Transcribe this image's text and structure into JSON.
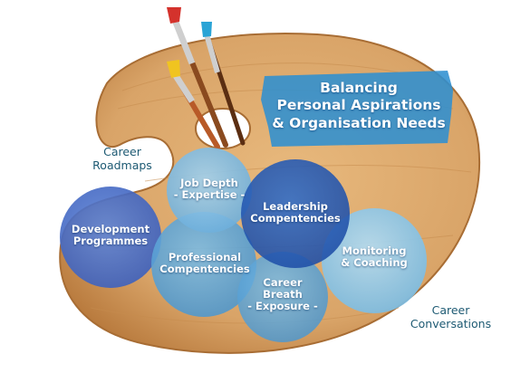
{
  "title": {
    "line1": "Balancing",
    "line2": "Personal Aspirations",
    "line3": "& Organisation Needs"
  },
  "outer_labels": {
    "roadmaps": {
      "line1": "Career",
      "line2": "Roadmaps"
    },
    "conversations": {
      "line1": "Career",
      "line2": "Conversations"
    }
  },
  "circles": {
    "development": {
      "line1": "Development",
      "line2": "Programmes"
    },
    "job_depth": {
      "line1": "Job Depth",
      "line2": "- Expertise -"
    },
    "leadership": {
      "line1": "Leadership",
      "line2": "Compentencies"
    },
    "professional": {
      "line1": "Professional",
      "line2": "Compentencies"
    },
    "monitoring": {
      "line1": "Monitoring",
      "line2": "& Coaching"
    },
    "career_breath": {
      "line1": "Career",
      "line2": "Breath",
      "line3": "- Exposure -"
    }
  },
  "colors": {
    "palette_wood": "#d9a468",
    "wood_edge": "#b97b3e",
    "title_splash": "#2f8fd0",
    "circle_dark_blue": "#3d6fc4",
    "circle_light_blue": "#7ab8e0",
    "circle_teal": "#5aa9d6",
    "text_label": "#1d5a73"
  }
}
